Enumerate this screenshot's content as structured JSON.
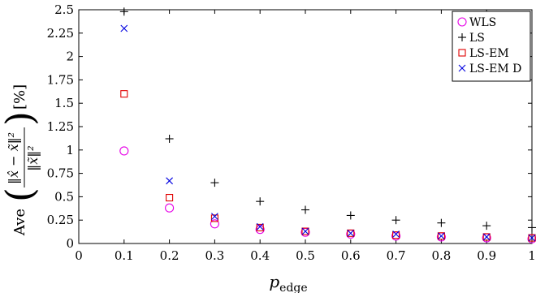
{
  "chart_data": {
    "type": "scatter",
    "title": "",
    "xlabel": "p",
    "xlabel_sub": "edge",
    "ylabel_prefix": "Ave",
    "ylabel_suffix": "[%]",
    "xlim": [
      0,
      1
    ],
    "ylim": [
      0,
      2.5
    ],
    "xticks": [
      0,
      0.1,
      0.2,
      0.3,
      0.4,
      0.5,
      0.6,
      0.7,
      0.8,
      0.9,
      1
    ],
    "xtick_labels": [
      "0",
      "0.1",
      "0.2",
      "0.3",
      "0.4",
      "0.5",
      "0.6",
      "0.7",
      "0.8",
      "0.9",
      "1"
    ],
    "yticks": [
      0,
      0.25,
      0.5,
      0.75,
      1,
      1.25,
      1.5,
      1.75,
      2,
      2.25,
      2.5
    ],
    "ytick_labels": [
      "0",
      "0.25",
      "0.5",
      "0.75",
      "1",
      "1.25",
      "1.5",
      "1.75",
      "2",
      "2.25",
      "2.5"
    ],
    "grid": false,
    "legend_position": "top-right",
    "x": [
      0.1,
      0.2,
      0.3,
      0.4,
      0.5,
      0.6,
      0.7,
      0.8,
      0.9,
      1.0
    ],
    "series": [
      {
        "name": "WLS",
        "marker": "circle",
        "color": "#e600e6",
        "values": [
          0.99,
          0.38,
          0.21,
          0.15,
          0.12,
          0.1,
          0.08,
          0.07,
          0.06,
          0.05
        ]
      },
      {
        "name": "LS",
        "marker": "plus",
        "color": "#000000",
        "values": [
          2.48,
          1.12,
          0.65,
          0.45,
          0.36,
          0.3,
          0.25,
          0.22,
          0.19,
          0.17
        ]
      },
      {
        "name": "LS-EM",
        "marker": "square",
        "color": "#e00000",
        "values": [
          1.6,
          0.49,
          0.27,
          0.17,
          0.13,
          0.11,
          0.09,
          0.08,
          0.07,
          0.06
        ]
      },
      {
        "name": "LS-EM D",
        "marker": "x",
        "color": "#0000e0",
        "values": [
          2.3,
          0.67,
          0.29,
          0.18,
          0.13,
          0.11,
          0.1,
          0.08,
          0.07,
          0.06
        ]
      }
    ]
  }
}
